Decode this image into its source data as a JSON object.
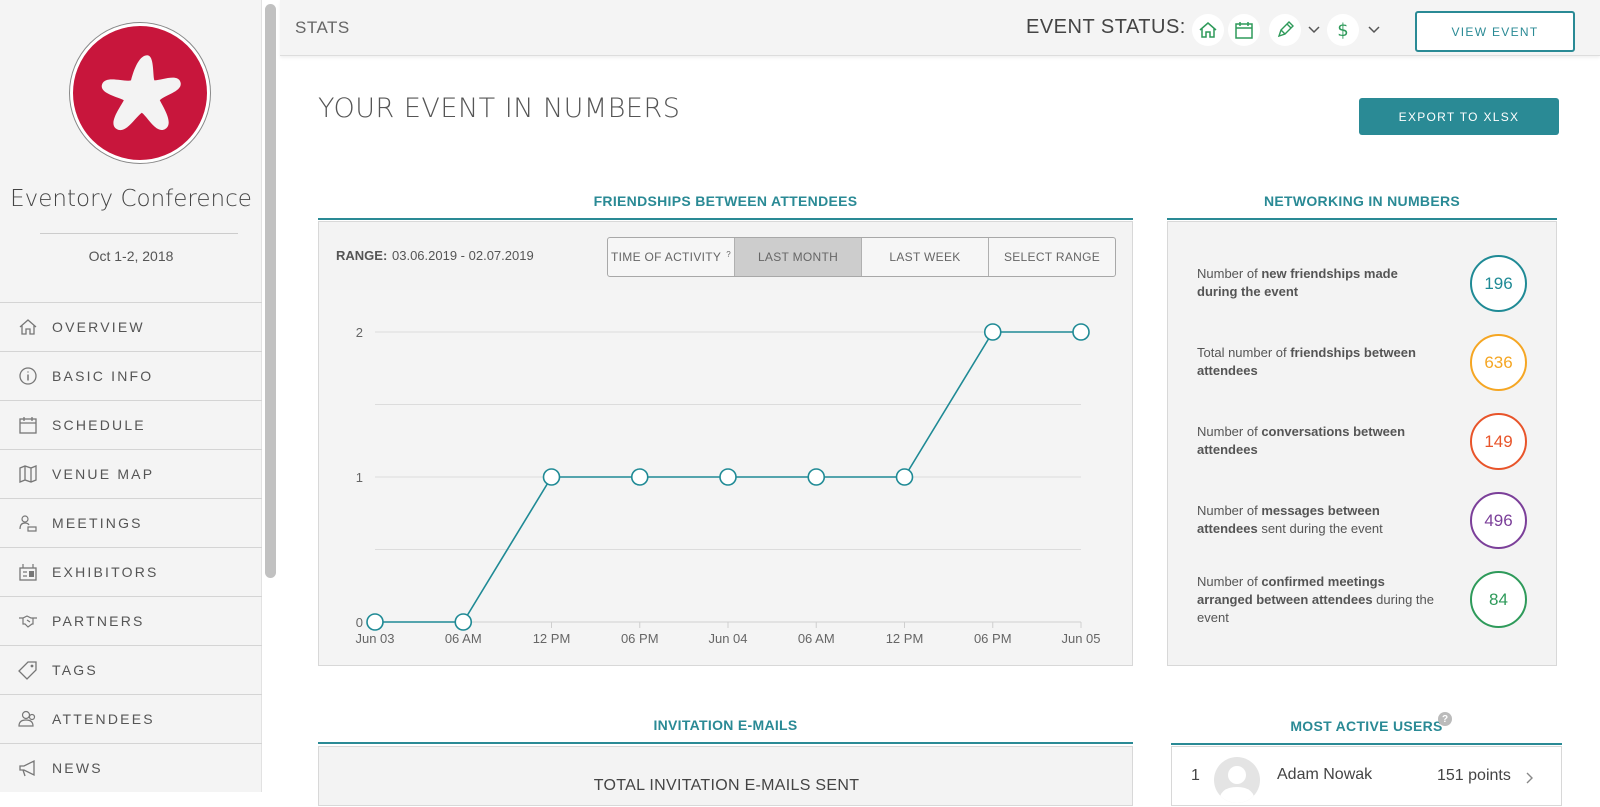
{
  "sidebar": {
    "conference_name": "Eventory Conference",
    "conference_date": "Oct 1-2, 2018",
    "items": [
      {
        "label": "OVERVIEW",
        "icon": "home-icon"
      },
      {
        "label": "BASIC INFO",
        "icon": "info-icon"
      },
      {
        "label": "SCHEDULE",
        "icon": "calendar-icon"
      },
      {
        "label": "VENUE MAP",
        "icon": "map-icon"
      },
      {
        "label": "MEETINGS",
        "icon": "meetings-icon"
      },
      {
        "label": "EXHIBITORS",
        "icon": "exhibitors-icon"
      },
      {
        "label": "PARTNERS",
        "icon": "handshake-icon"
      },
      {
        "label": "TAGS",
        "icon": "tag-icon"
      },
      {
        "label": "ATTENDEES",
        "icon": "attendees-icon"
      },
      {
        "label": "NEWS",
        "icon": "megaphone-icon"
      }
    ]
  },
  "topbar": {
    "title": "STATS",
    "event_status_label": "EVENT STATUS:",
    "status_icons": [
      "home-icon",
      "calendar-icon",
      "pen-icon",
      "dollar-icon"
    ],
    "view_event_label": "VIEW EVENT"
  },
  "main": {
    "title": "YOUR EVENT IN NUMBERS",
    "export_label": "EXPORT TO XLSX"
  },
  "friendships": {
    "title": "FRIENDSHIPS BETWEEN ATTENDEES",
    "range_label": "RANGE:",
    "range_value": "03.06.2019 - 02.07.2019",
    "filters": [
      {
        "label": "TIME OF ACTIVITY",
        "superscript": "?",
        "active": false
      },
      {
        "label": "LAST MONTH",
        "active": true
      },
      {
        "label": "LAST WEEK",
        "active": false
      },
      {
        "label": "SELECT RANGE",
        "active": false
      }
    ]
  },
  "chart_data": {
    "type": "line",
    "x": [
      "Jun 03",
      "06 AM",
      "12 PM",
      "06 PM",
      "Jun 04",
      "06 AM",
      "12 PM",
      "06 PM",
      "Jun 05"
    ],
    "values": [
      0,
      0,
      1,
      1,
      1,
      1,
      1,
      2,
      2
    ],
    "yticks": [
      0,
      1,
      2
    ],
    "ylim": [
      0,
      2
    ],
    "gridlines": [
      0,
      0.5,
      1,
      1.5,
      2
    ],
    "color": "#1f8a95",
    "title": "",
    "xlabel": "",
    "ylabel": ""
  },
  "networking": {
    "title": "NETWORKING IN NUMBERS",
    "stats": [
      {
        "pre": "Number of ",
        "bold": "new friendships made during the event",
        "post": "",
        "value": "196",
        "color": "#1f8a95"
      },
      {
        "pre": "Total number of ",
        "bold": "friendships between attendees",
        "post": "",
        "value": "636",
        "color": "#f5a623"
      },
      {
        "pre": "Number of ",
        "bold": "conversations between attendees",
        "post": "",
        "value": "149",
        "color": "#e8542a"
      },
      {
        "pre": "Number of ",
        "bold": "messages between attendees",
        "post": " sent during the event",
        "value": "496",
        "color": "#7b3f99"
      },
      {
        "pre": "Number of ",
        "bold": "confirmed meetings arranged between attendees",
        "post": " during the event",
        "value": "84",
        "color": "#2e9a5a"
      }
    ]
  },
  "invitations": {
    "title": "INVITATION E-MAILS",
    "total_label": "TOTAL INVITATION E-MAILS SENT"
  },
  "most_active": {
    "title": "MOST ACTIVE USERS",
    "help": "?",
    "users": [
      {
        "rank": "1",
        "name": "Adam Nowak",
        "points": "151 points"
      }
    ]
  }
}
